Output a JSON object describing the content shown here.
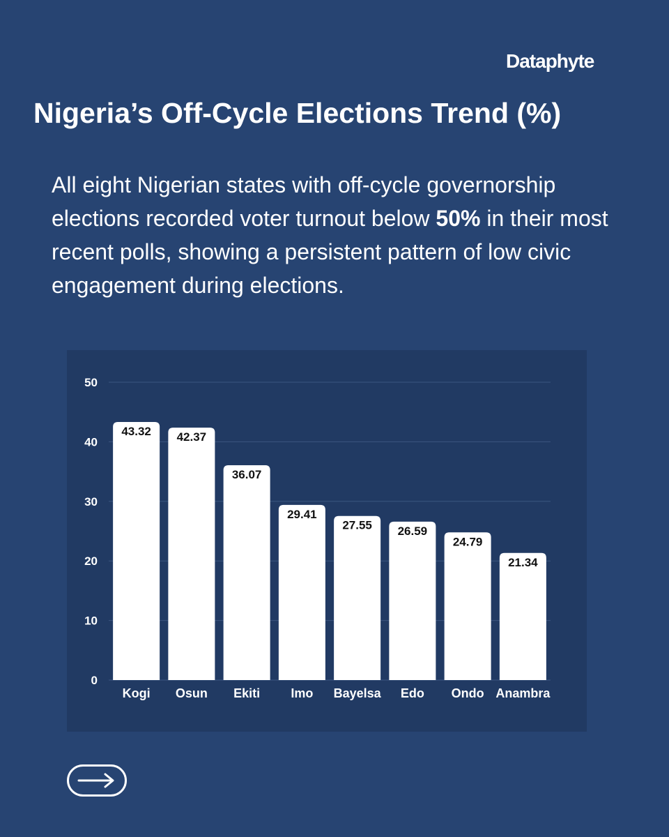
{
  "brand": {
    "name": "Dataphyte"
  },
  "title": "Nigeria’s Off-Cycle Elections Trend (%)",
  "description": {
    "before": "All eight Nigerian states with off-cycle governorship elections recorded voter turnout below ",
    "highlight": "50%",
    "after": " in their most recent polls, showing a persistent pattern of low civic engagement during elections."
  },
  "next_button": {
    "icon": "arrow-right-icon"
  },
  "colors": {
    "background": "#274472",
    "chart_panel": "#213a63",
    "bar": "#ffffff",
    "gridline": "#3b5680"
  },
  "chart_data": {
    "type": "bar",
    "categories": [
      "Kogi",
      "Osun",
      "Ekiti",
      "Imo",
      "Bayelsa",
      "Edo",
      "Ondo",
      "Anambra"
    ],
    "values": [
      43.32,
      42.37,
      36.07,
      29.41,
      27.55,
      26.59,
      24.79,
      21.34
    ],
    "value_labels": [
      "43.32",
      "42.37",
      "36.07",
      "29.41",
      "27.55",
      "26.59",
      "24.79",
      "21.34"
    ],
    "ylim": [
      0,
      50
    ],
    "yticks": [
      0,
      10,
      20,
      30,
      40,
      50
    ],
    "grid": true,
    "legend": "none"
  }
}
